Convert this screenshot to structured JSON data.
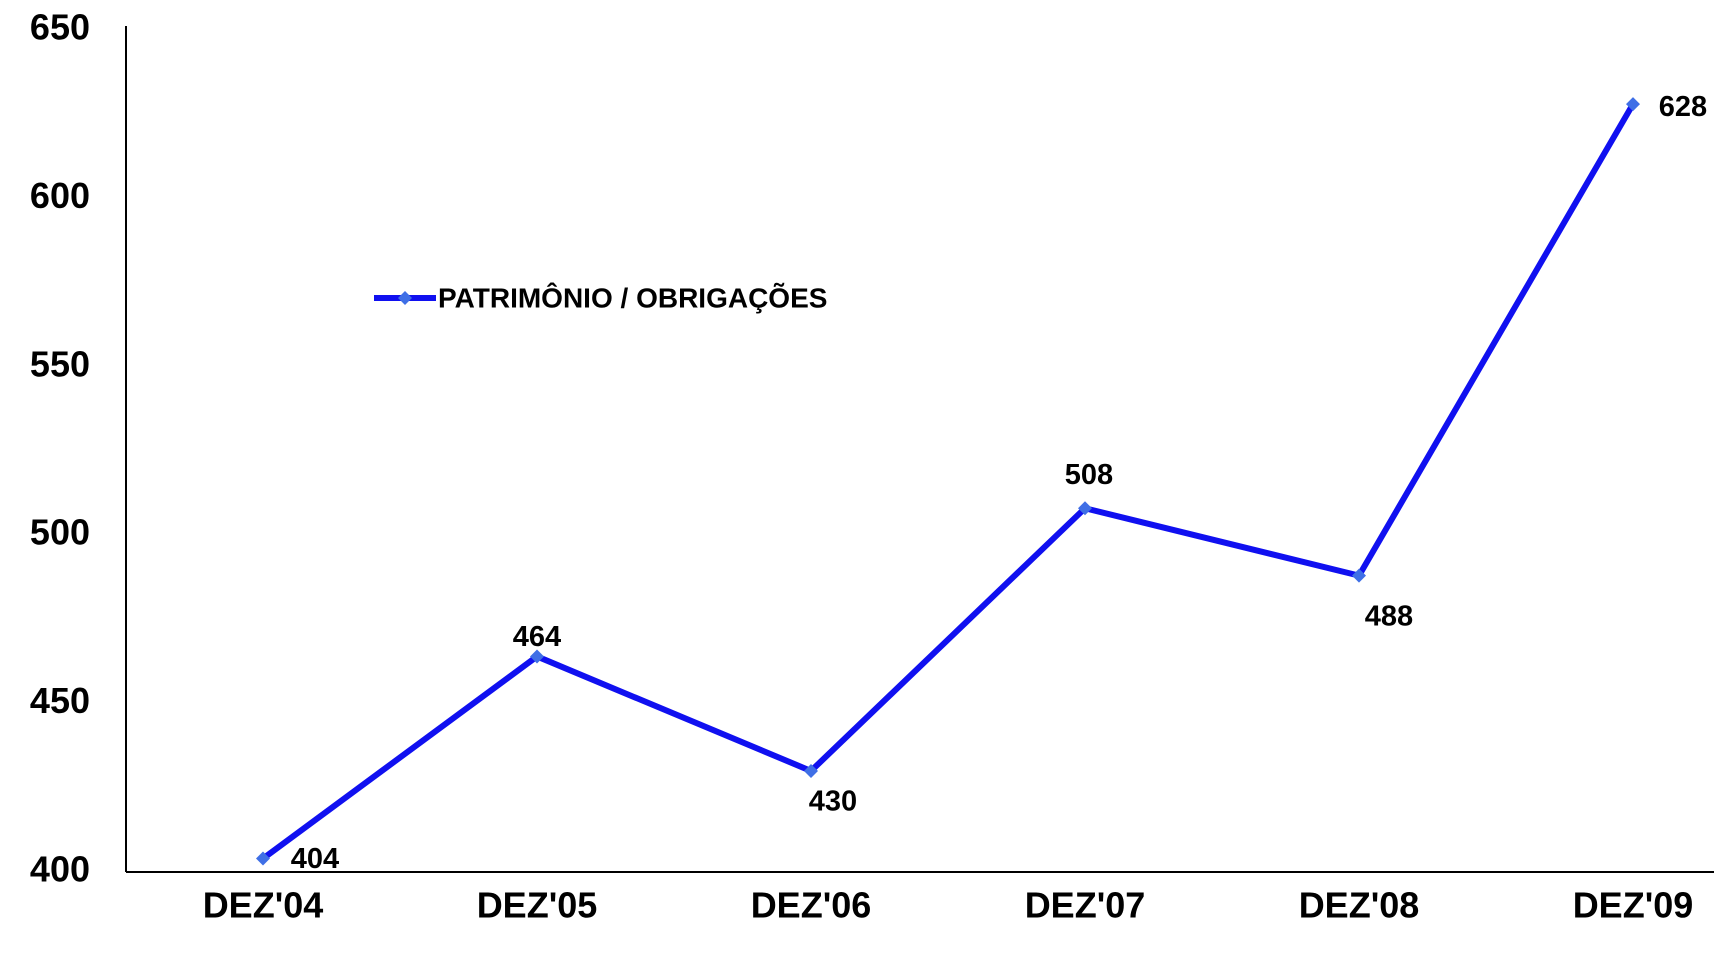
{
  "chart_data": {
    "type": "line",
    "categories": [
      "DEZ'04",
      "DEZ'05",
      "DEZ'06",
      "DEZ'07",
      "DEZ'08",
      "DEZ'09"
    ],
    "series": [
      {
        "name": "PATRIMÔNIO / OBRIGAÇÕES",
        "color": "#1010f0",
        "marker_color": "#3f6fe6",
        "values": [
          404,
          464,
          430,
          508,
          488,
          628
        ]
      }
    ],
    "ylim": [
      400,
      650
    ],
    "yticks": [
      400,
      450,
      500,
      550,
      600,
      650
    ],
    "grid": false,
    "legend": "upper left"
  }
}
